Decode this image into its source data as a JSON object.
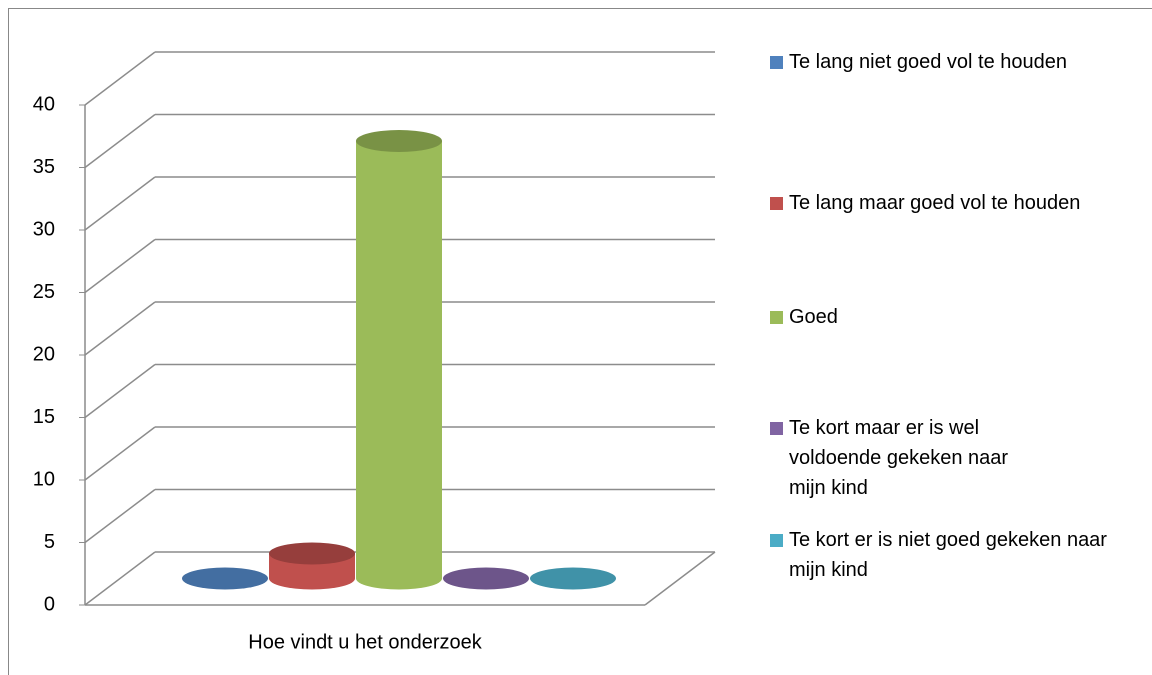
{
  "chart_data": {
    "type": "bar3d",
    "categories": [
      "Hoe vindt u het onderzoek"
    ],
    "series": [
      {
        "name": "Te lang niet goed vol te houden",
        "color": "#4f81bd",
        "values": [
          0
        ]
      },
      {
        "name": "Te lang maar goed vol te houden",
        "color": "#c0504d",
        "values": [
          2
        ]
      },
      {
        "name": "Goed",
        "color": "#9bbb59",
        "values": [
          35
        ]
      },
      {
        "name": "Te kort maar er is wel voldoende gekeken naar mijn kind",
        "color": "#8064a2",
        "values": [
          0
        ]
      },
      {
        "name": "Te kort er is niet goed gekeken naar mijn kind",
        "color": "#4bacc6",
        "values": [
          0
        ]
      }
    ],
    "ylim": [
      0,
      40
    ],
    "yticks": [
      0,
      5,
      10,
      15,
      20,
      25,
      30,
      35,
      40
    ],
    "grid": true,
    "legend": "right"
  }
}
